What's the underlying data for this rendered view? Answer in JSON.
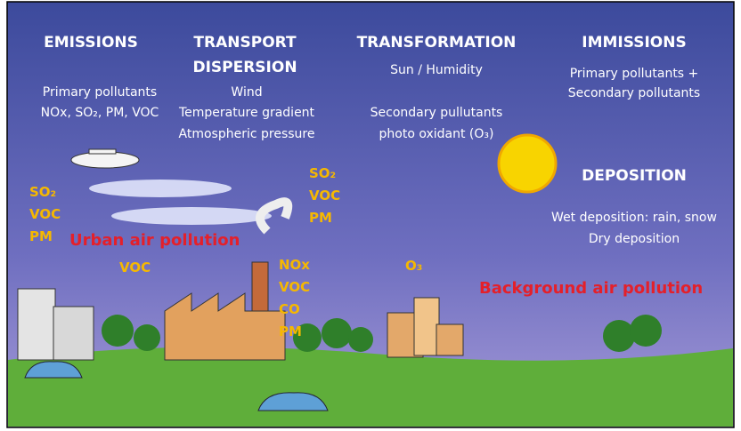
{
  "columns": [
    {
      "title": [
        "EMISSIONS"
      ],
      "lines": [
        "Primary pollutants",
        "NOx, SO₂, PM, VOC"
      ]
    },
    {
      "title": [
        "TRANSPORT",
        "DISPERSION"
      ],
      "lines": [
        "Wind",
        "Temperature gradient",
        "Atmospheric pressure"
      ]
    },
    {
      "title": [
        "TRANSFORMATION"
      ],
      "lines": [
        "Sun / Humidity",
        "Secondary pullutants",
        "photo oxidant (O₃)"
      ]
    },
    {
      "title": [
        "IMMISSIONS"
      ],
      "lines": [
        "Primary pollutants +",
        "Secondary pollutants"
      ]
    },
    {
      "title": [
        "DEPOSITION"
      ],
      "lines": [
        "Wet deposition: rain, snow",
        "Dry deposition"
      ]
    }
  ],
  "pollutants": [
    [
      "SO₂",
      "VOC",
      "PM"
    ],
    [
      "VOC"
    ],
    [
      "SO₂",
      "VOC",
      "PM"
    ],
    [
      "NOx",
      "VOC",
      "CO",
      "PM"
    ],
    [
      "O₃"
    ]
  ],
  "areas": [
    "Urban air pollution",
    "Background air pollution"
  ]
}
